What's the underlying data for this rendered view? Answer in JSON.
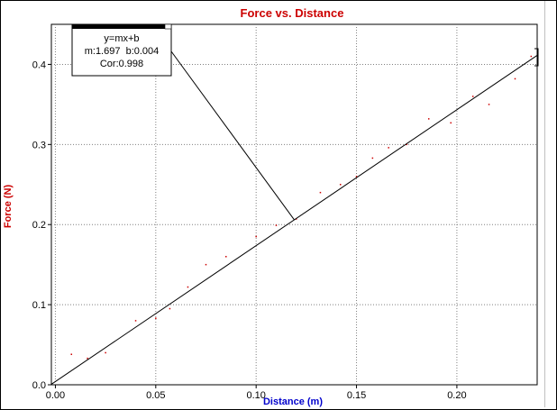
{
  "colors": {
    "title": "#cc0000",
    "xlabel": "#0000cc",
    "ylabel": "#cc0000",
    "grid": "#808080",
    "points": "#cc0000",
    "fit": "#000000"
  },
  "fit_box": {
    "equation": "y=mx+b",
    "params": "m:1.697  b:0.004",
    "correlation": "Cor:0.998",
    "close_icon": "close-icon"
  },
  "chart_data": {
    "type": "scatter",
    "title": "Force vs. Distance",
    "xlabel": "Distance (m)",
    "ylabel": "Force (N)",
    "xlim": [
      -0.002,
      0.24
    ],
    "ylim": [
      0.0,
      0.45
    ],
    "grid": true,
    "x_ticks": [
      "0.00",
      "0.05",
      "0.10",
      "0.15",
      "0.20"
    ],
    "x_tick_values": [
      0.0,
      0.05,
      0.1,
      0.15,
      0.2
    ],
    "y_ticks": [
      "0.0",
      "0.1",
      "0.2",
      "0.3",
      "0.4"
    ],
    "y_tick_values": [
      0.0,
      0.1,
      0.2,
      0.3,
      0.4
    ],
    "series": [
      {
        "x": [
          0.008,
          0.016,
          0.025,
          0.04,
          0.05,
          0.057,
          0.066,
          0.075,
          0.085,
          0.1,
          0.11,
          0.12,
          0.132,
          0.142,
          0.15,
          0.158,
          0.166,
          0.175,
          0.186,
          0.197,
          0.208,
          0.216,
          0.229,
          0.237
        ],
        "y": [
          0.038,
          0.033,
          0.04,
          0.08,
          0.083,
          0.095,
          0.122,
          0.15,
          0.16,
          0.185,
          0.199,
          0.207,
          0.24,
          0.25,
          0.26,
          0.283,
          0.296,
          0.3,
          0.332,
          0.327,
          0.36,
          0.35,
          0.382,
          0.41
        ]
      }
    ],
    "fit": {
      "m": 1.697,
      "b": 0.004,
      "x_range": [
        -0.002,
        0.24
      ]
    },
    "fit_callout_x": 0.119
  }
}
